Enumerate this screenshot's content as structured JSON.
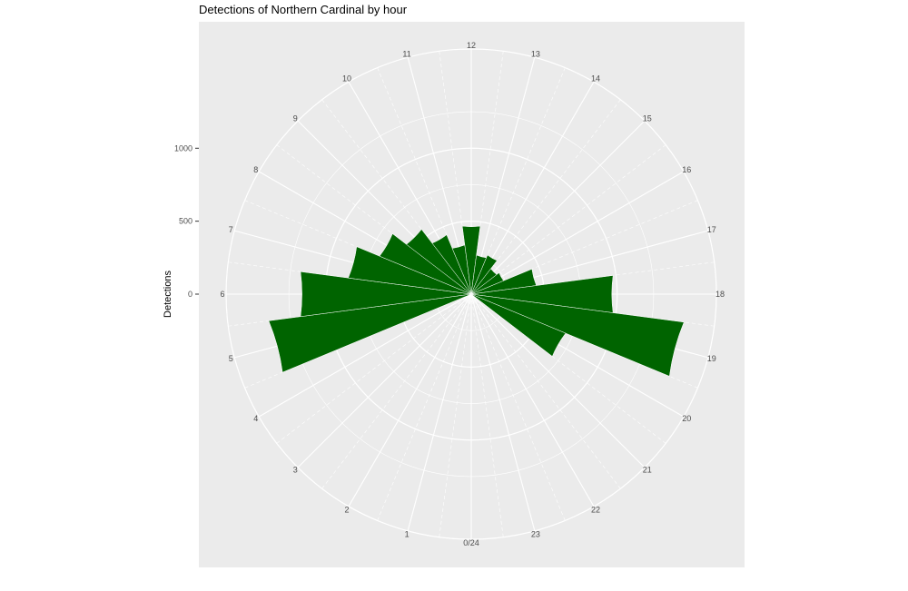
{
  "chart_data": {
    "type": "bar",
    "coord": "polar",
    "title": "Detections of Northern Cardinal by hour",
    "xlabel": "",
    "ylabel": "Detections",
    "hour_labels": [
      "0/24",
      "1",
      "2",
      "3",
      "4",
      "5",
      "6",
      "7",
      "8",
      "9",
      "10",
      "11",
      "12",
      "13",
      "14",
      "15",
      "16",
      "17",
      "18",
      "19",
      "20",
      "21",
      "22",
      "23"
    ],
    "y_ticks": [
      0,
      500,
      1000
    ],
    "ylim": [
      0,
      1680
    ],
    "series": [
      {
        "color": "#006400",
        "categories": [
          0,
          1,
          2,
          3,
          4,
          5,
          6,
          7,
          8,
          9,
          10,
          11,
          12,
          13,
          14,
          15,
          16,
          17,
          18,
          19,
          20,
          21,
          22,
          23
        ],
        "values": [
          0,
          0,
          0,
          0,
          0,
          1400,
          1180,
          850,
          680,
          560,
          440,
          340,
          470,
          270,
          290,
          220,
          240,
          450,
          980,
          1470,
          700,
          0,
          0,
          0
        ]
      }
    ],
    "panel_background": "#ebebeb",
    "grid_color": "#ffffff"
  }
}
